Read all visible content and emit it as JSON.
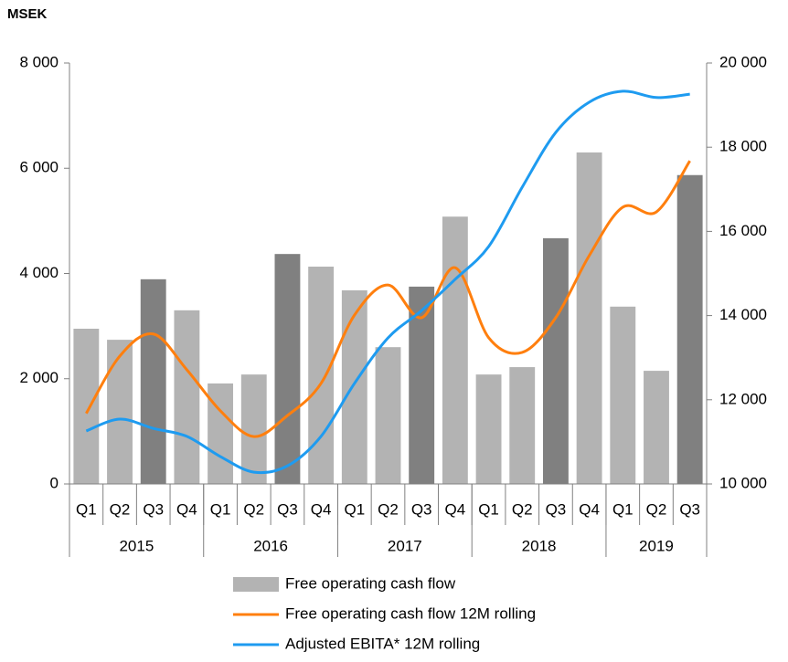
{
  "chart_data": {
    "type": "bar-line",
    "title": "MSEK",
    "categories": [
      "Q1",
      "Q2",
      "Q3",
      "Q4",
      "Q1",
      "Q2",
      "Q3",
      "Q4",
      "Q1",
      "Q2",
      "Q3",
      "Q4",
      "Q1",
      "Q2",
      "Q3",
      "Q4",
      "Q1",
      "Q2",
      "Q3"
    ],
    "years": [
      "2015",
      "2016",
      "2017",
      "2018",
      "2019"
    ],
    "series": [
      {
        "name": "Free operating cash flow",
        "type": "bar",
        "color": "#b3b3b3",
        "colors": [
          "#b3b3b3",
          "#b3b3b3",
          "#808080",
          "#b3b3b3",
          "#b3b3b3",
          "#b3b3b3",
          "#808080",
          "#b3b3b3",
          "#b3b3b3",
          "#b3b3b3",
          "#808080",
          "#b3b3b3",
          "#b3b3b3",
          "#b3b3b3",
          "#808080",
          "#b3b3b3",
          "#b3b3b3",
          "#b3b3b3",
          "#808080"
        ],
        "values": [
          2950,
          2740,
          3890,
          3300,
          1910,
          2080,
          4370,
          4130,
          3680,
          2600,
          3750,
          5080,
          2080,
          2220,
          4670,
          6300,
          3370,
          2150,
          5870
        ]
      },
      {
        "name": "Free operating cash flow 12M rolling",
        "type": "line",
        "color": "#ff7f0e",
        "values": [
          1340,
          2430,
          2850,
          2170,
          1390,
          900,
          1300,
          1910,
          3210,
          3780,
          3160,
          4110,
          2780,
          2500,
          3160,
          4340,
          5260,
          5170,
          6140
        ]
      },
      {
        "name": "Adjusted EBITA* 12M rolling",
        "type": "line",
        "axis": "y2",
        "color": "#1e9bf0",
        "values": [
          11260,
          11540,
          11320,
          11130,
          10650,
          10280,
          10430,
          11130,
          12390,
          13470,
          14120,
          14860,
          15640,
          17050,
          18350,
          19070,
          19330,
          19180,
          19260
        ]
      }
    ],
    "ylim": [
      0,
      8000
    ],
    "yticks": [
      0,
      {
        "value": 2000,
        "label": "2 000"
      },
      {
        "value": 4000,
        "label": "4 000"
      },
      {
        "value": 6000,
        "label": "6 000"
      },
      {
        "value": 8000,
        "label": "8 000"
      }
    ],
    "y2lim": [
      10000,
      20000
    ],
    "y2ticks": [
      {
        "value": 10000,
        "label": "10 000"
      },
      {
        "value": 12000,
        "label": "12 000"
      },
      {
        "value": 14000,
        "label": "14 000"
      },
      {
        "value": 16000,
        "label": "16 000"
      },
      {
        "value": 18000,
        "label": "18 000"
      },
      {
        "value": 20000,
        "label": "20 000"
      }
    ]
  }
}
